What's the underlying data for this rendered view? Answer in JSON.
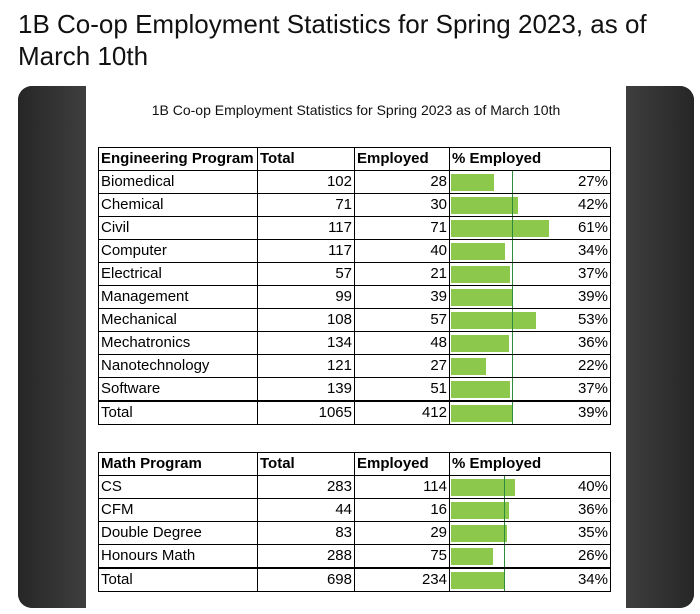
{
  "headline": "1B Co-op Employment Statistics for Spring 2023, as of March 10th",
  "image_title": "1B Co-op Employment Statistics for Spring 2023 as of March 10th",
  "engineering": {
    "headers": [
      "Engineering Program",
      "Total",
      "Employed",
      "% Employed"
    ],
    "rows": [
      {
        "program": "Biomedical",
        "total": "102",
        "employed": "28",
        "pct": "27%",
        "frac": 0.27
      },
      {
        "program": "Chemical",
        "total": "71",
        "employed": "30",
        "pct": "42%",
        "frac": 0.42
      },
      {
        "program": "Civil",
        "total": "117",
        "employed": "71",
        "pct": "61%",
        "frac": 0.61
      },
      {
        "program": "Computer",
        "total": "117",
        "employed": "40",
        "pct": "34%",
        "frac": 0.34
      },
      {
        "program": "Electrical",
        "total": "57",
        "employed": "21",
        "pct": "37%",
        "frac": 0.37
      },
      {
        "program": "Management",
        "total": "99",
        "employed": "39",
        "pct": "39%",
        "frac": 0.39
      },
      {
        "program": "Mechanical",
        "total": "108",
        "employed": "57",
        "pct": "53%",
        "frac": 0.53
      },
      {
        "program": "Mechatronics",
        "total": "134",
        "employed": "48",
        "pct": "36%",
        "frac": 0.36
      },
      {
        "program": "Nanotechnology",
        "total": "121",
        "employed": "27",
        "pct": "22%",
        "frac": 0.22
      },
      {
        "program": "Software",
        "total": "139",
        "employed": "51",
        "pct": "37%",
        "frac": 0.37
      }
    ],
    "total": {
      "program": "Total",
      "total": "1065",
      "employed": "412",
      "pct": "39%",
      "frac": 0.39
    },
    "average_frac": 0.39
  },
  "math": {
    "headers": [
      "Math Program",
      "Total",
      "Employed",
      "% Employed"
    ],
    "rows": [
      {
        "program": "CS",
        "total": "283",
        "employed": "114",
        "pct": "40%",
        "frac": 0.4
      },
      {
        "program": "CFM",
        "total": "44",
        "employed": "16",
        "pct": "36%",
        "frac": 0.36
      },
      {
        "program": "Double Degree",
        "total": "83",
        "employed": "29",
        "pct": "35%",
        "frac": 0.35
      },
      {
        "program": "Honours Math",
        "total": "288",
        "employed": "75",
        "pct": "26%",
        "frac": 0.26
      }
    ],
    "total": {
      "program": "Total",
      "total": "698",
      "employed": "234",
      "pct": "34%",
      "frac": 0.34
    },
    "average_frac": 0.34
  },
  "colors": {
    "bar": "#8cc84b",
    "average_line": "#2e8b3a"
  }
}
